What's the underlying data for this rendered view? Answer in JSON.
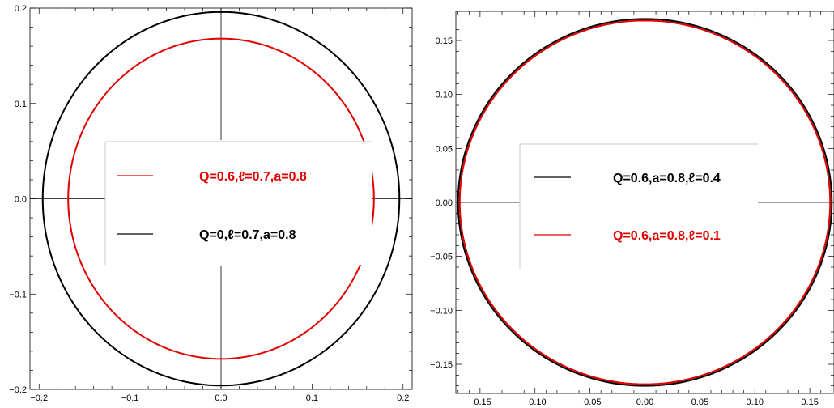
{
  "chart_data": [
    {
      "type": "line",
      "title": "",
      "xlabel": "",
      "ylabel": "",
      "xlim": [
        -0.21,
        0.21
      ],
      "ylim": [
        -0.2,
        0.2
      ],
      "xticks": [
        "-0.2",
        "-0.1",
        "0.0",
        "0.1",
        "0.2"
      ],
      "yticks": [
        "-0.2",
        "-0.1",
        "0.0",
        "0.1",
        "0.2"
      ],
      "grid": false,
      "legend_position": "center",
      "series": [
        {
          "name": "Q=0.6,ℓ=0.7,a=0.8",
          "color": "#e00000",
          "shape": "circle",
          "center": [
            0,
            0
          ],
          "radius": 0.168
        },
        {
          "name": "Q=0,ℓ=0.7,a=0.8",
          "color": "#000000",
          "shape": "circle",
          "center": [
            0,
            0
          ],
          "radius": 0.196
        }
      ]
    },
    {
      "type": "line",
      "title": "",
      "xlabel": "",
      "ylabel": "",
      "xlim": [
        -0.172,
        0.172
      ],
      "ylim": [
        -0.177,
        0.177
      ],
      "xticks": [
        "-0.15",
        "-0.10",
        "-0.05",
        "0.00",
        "0.05",
        "0.10",
        "0.15"
      ],
      "yticks": [
        "-0.15",
        "-0.10",
        "-0.05",
        "0.00",
        "0.05",
        "0.10",
        "0.15"
      ],
      "grid": false,
      "legend_position": "center",
      "series": [
        {
          "name": "Q=0.6,a=0.8,ℓ=0.4",
          "color": "#000000",
          "shape": "circle",
          "center": [
            0,
            0
          ],
          "radius": 0.17
        },
        {
          "name": "Q=0.6,a=0.8,ℓ=0.1",
          "color": "#e00000",
          "shape": "circle",
          "center": [
            0,
            0
          ],
          "radius": 0.1685
        }
      ]
    }
  ]
}
